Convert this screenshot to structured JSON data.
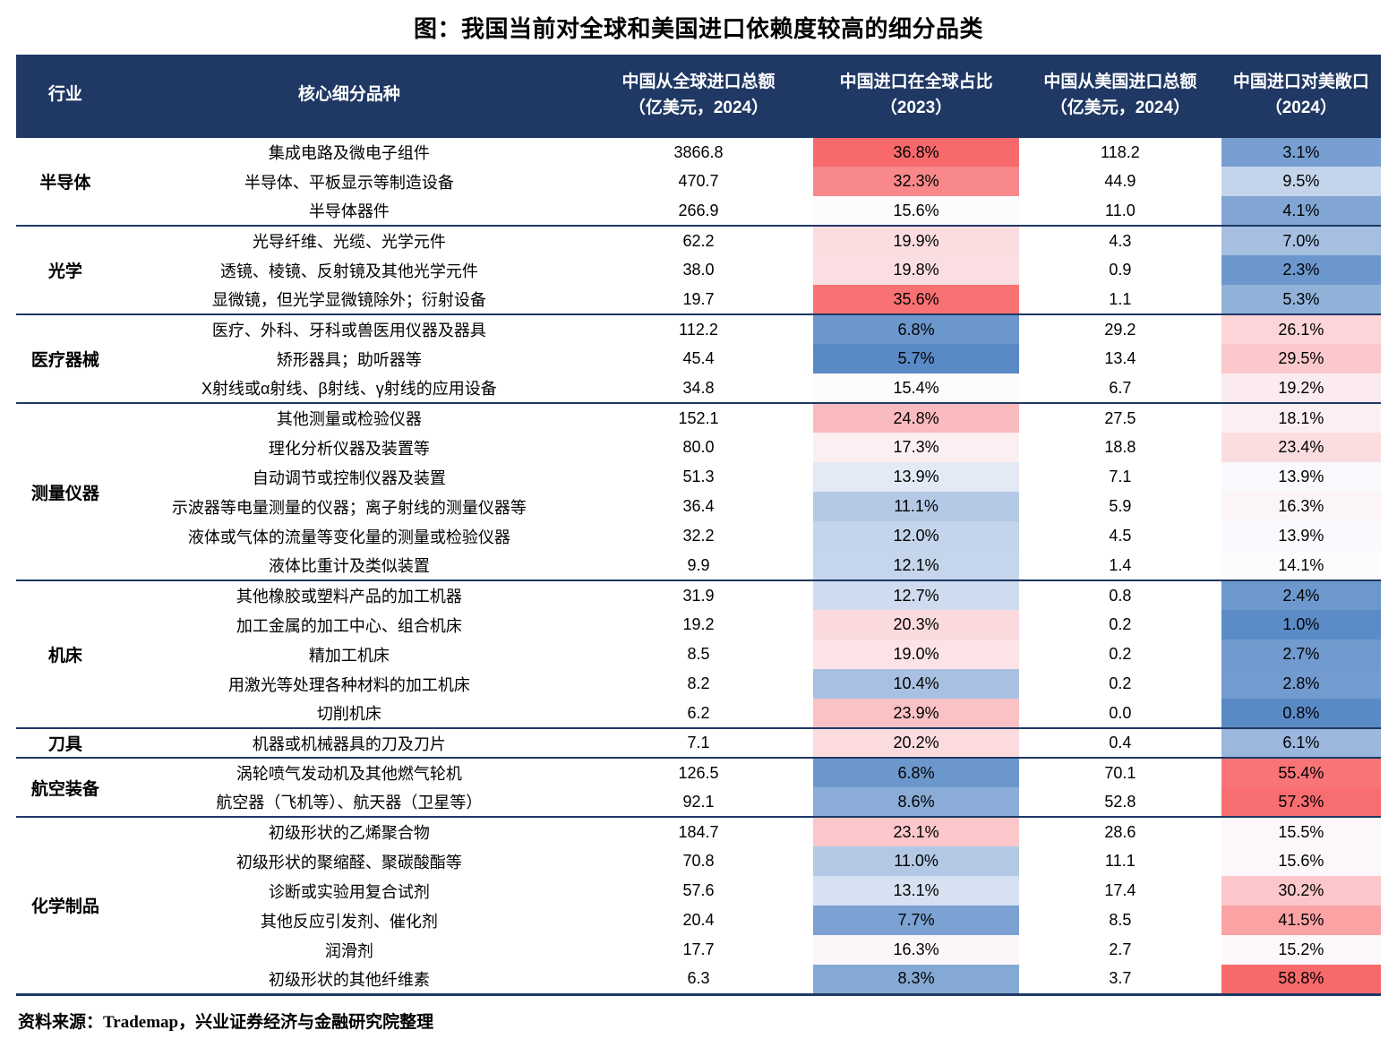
{
  "title": "图：我国当前对全球和美国进口依赖度较高的细分品类",
  "source": "资料来源：Trademap，兴业证券经济与金融研究院整理",
  "colors": {
    "header_bg": "#1F3864",
    "header_text": "#FFFFFF",
    "divider": "#1F3864",
    "scale_low": "#5A8AC6",
    "scale_mid": "#FCFCFF",
    "scale_high": "#F8696B"
  },
  "scales": {
    "global_share": {
      "min": 5.7,
      "mid": 15.4,
      "max": 36.8
    },
    "us_exposure": {
      "min": 0.8,
      "mid": 14.1,
      "max": 58.8
    }
  },
  "chart_data": {
    "type": "table",
    "title": "图：我国当前对全球和美国进口依赖度较高的细分品类",
    "columns": [
      "行业",
      "核心细分品种",
      "中国从全球进口总额\n（亿美元，2024）",
      "中国进口在全球占比\n（2023）",
      "中国从美国进口总额\n（亿美元，2024）",
      "中国进口对美敞口\n（2024）"
    ],
    "groups": [
      {
        "industry": "半导体",
        "rows": [
          {
            "name": "集成电路及微电子组件",
            "global_import": "3866.8",
            "global_share_pct": 36.8,
            "us_import": "118.2",
            "us_exposure_pct": 3.1
          },
          {
            "name": "半导体、平板显示等制造设备",
            "global_import": "470.7",
            "global_share_pct": 32.3,
            "us_import": "44.9",
            "us_exposure_pct": 9.5
          },
          {
            "name": "半导体器件",
            "global_import": "266.9",
            "global_share_pct": 15.6,
            "us_import": "11.0",
            "us_exposure_pct": 4.1
          }
        ]
      },
      {
        "industry": "光学",
        "rows": [
          {
            "name": "光导纤维、光缆、光学元件",
            "global_import": "62.2",
            "global_share_pct": 19.9,
            "us_import": "4.3",
            "us_exposure_pct": 7.0
          },
          {
            "name": "透镜、棱镜、反射镜及其他光学元件",
            "global_import": "38.0",
            "global_share_pct": 19.8,
            "us_import": "0.9",
            "us_exposure_pct": 2.3
          },
          {
            "name": "显微镜，但光学显微镜除外；衍射设备",
            "global_import": "19.7",
            "global_share_pct": 35.6,
            "us_import": "1.1",
            "us_exposure_pct": 5.3
          }
        ]
      },
      {
        "industry": "医疗器械",
        "rows": [
          {
            "name": "医疗、外科、牙科或兽医用仪器及器具",
            "global_import": "112.2",
            "global_share_pct": 6.8,
            "us_import": "29.2",
            "us_exposure_pct": 26.1
          },
          {
            "name": "矫形器具；助听器等",
            "global_import": "45.4",
            "global_share_pct": 5.7,
            "us_import": "13.4",
            "us_exposure_pct": 29.5
          },
          {
            "name": "X射线或α射线、β射线、γ射线的应用设备",
            "global_import": "34.8",
            "global_share_pct": 15.4,
            "us_import": "6.7",
            "us_exposure_pct": 19.2
          }
        ]
      },
      {
        "industry": "测量仪器",
        "rows": [
          {
            "name": "其他测量或检验仪器",
            "global_import": "152.1",
            "global_share_pct": 24.8,
            "us_import": "27.5",
            "us_exposure_pct": 18.1
          },
          {
            "name": "理化分析仪器及装置等",
            "global_import": "80.0",
            "global_share_pct": 17.3,
            "us_import": "18.8",
            "us_exposure_pct": 23.4
          },
          {
            "name": "自动调节或控制仪器及装置",
            "global_import": "51.3",
            "global_share_pct": 13.9,
            "us_import": "7.1",
            "us_exposure_pct": 13.9
          },
          {
            "name": "示波器等电量测量的仪器；离子射线的测量仪器等",
            "global_import": "36.4",
            "global_share_pct": 11.1,
            "us_import": "5.9",
            "us_exposure_pct": 16.3
          },
          {
            "name": "液体或气体的流量等变化量的测量或检验仪器",
            "global_import": "32.2",
            "global_share_pct": 12.0,
            "us_import": "4.5",
            "us_exposure_pct": 13.9
          },
          {
            "name": "液体比重计及类似装置",
            "global_import": "9.9",
            "global_share_pct": 12.1,
            "us_import": "1.4",
            "us_exposure_pct": 14.1
          }
        ]
      },
      {
        "industry": "机床",
        "rows": [
          {
            "name": "其他橡胶或塑料产品的加工机器",
            "global_import": "31.9",
            "global_share_pct": 12.7,
            "us_import": "0.8",
            "us_exposure_pct": 2.4
          },
          {
            "name": "加工金属的加工中心、组合机床",
            "global_import": "19.2",
            "global_share_pct": 20.3,
            "us_import": "0.2",
            "us_exposure_pct": 1.0
          },
          {
            "name": "精加工机床",
            "global_import": "8.5",
            "global_share_pct": 19.0,
            "us_import": "0.2",
            "us_exposure_pct": 2.7
          },
          {
            "name": "用激光等处理各种材料的加工机床",
            "global_import": "8.2",
            "global_share_pct": 10.4,
            "us_import": "0.2",
            "us_exposure_pct": 2.8
          },
          {
            "name": "切削机床",
            "global_import": "6.2",
            "global_share_pct": 23.9,
            "us_import": "0.0",
            "us_exposure_pct": 0.8
          }
        ]
      },
      {
        "industry": "刀具",
        "rows": [
          {
            "name": "机器或机械器具的刀及刀片",
            "global_import": "7.1",
            "global_share_pct": 20.2,
            "us_import": "0.4",
            "us_exposure_pct": 6.1
          }
        ]
      },
      {
        "industry": "航空装备",
        "rows": [
          {
            "name": "涡轮喷气发动机及其他燃气轮机",
            "global_import": "126.5",
            "global_share_pct": 6.8,
            "us_import": "70.1",
            "us_exposure_pct": 55.4
          },
          {
            "name": "航空器（飞机等）、航天器（卫星等）",
            "global_import": "92.1",
            "global_share_pct": 8.6,
            "us_import": "52.8",
            "us_exposure_pct": 57.3
          }
        ]
      },
      {
        "industry": "化学制品",
        "rows": [
          {
            "name": "初级形状的乙烯聚合物",
            "global_import": "184.7",
            "global_share_pct": 23.1,
            "us_import": "28.6",
            "us_exposure_pct": 15.5
          },
          {
            "name": "初级形状的聚缩醛、聚碳酸酯等",
            "global_import": "70.8",
            "global_share_pct": 11.0,
            "us_import": "11.1",
            "us_exposure_pct": 15.6
          },
          {
            "name": "诊断或实验用复合试剂",
            "global_import": "57.6",
            "global_share_pct": 13.1,
            "us_import": "17.4",
            "us_exposure_pct": 30.2
          },
          {
            "name": "其他反应引发剂、催化剂",
            "global_import": "20.4",
            "global_share_pct": 7.7,
            "us_import": "8.5",
            "us_exposure_pct": 41.5
          },
          {
            "name": "润滑剂",
            "global_import": "17.7",
            "global_share_pct": 16.3,
            "us_import": "2.7",
            "us_exposure_pct": 15.2
          },
          {
            "name": "初级形状的其他纤维素",
            "global_import": "6.3",
            "global_share_pct": 8.3,
            "us_import": "3.7",
            "us_exposure_pct": 58.8
          }
        ]
      }
    ]
  }
}
